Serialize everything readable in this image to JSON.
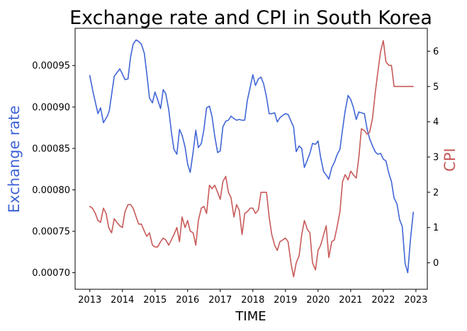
{
  "chart_data": {
    "type": "line",
    "title": "Exchange rate and CPI in South Korea",
    "xlabel": "TIME",
    "xticks": [
      "2013",
      "2014",
      "2015",
      "2016",
      "2017",
      "2018",
      "2019",
      "2020",
      "2021",
      "2022",
      "2023"
    ],
    "xlim": [
      2012.55,
      2023.35
    ],
    "left_axis": {
      "label": "Exchange rate",
      "color": "#4166d6",
      "ylim": [
        0.00068,
        0.000995
      ],
      "ticks": [
        "0.00070",
        "0.00075",
        "0.00080",
        "0.00085",
        "0.00090",
        "0.00095"
      ]
    },
    "right_axis": {
      "label": "CPI",
      "color": "#c85a5a",
      "ylim": [
        -0.75,
        6.65
      ],
      "ticks": [
        "0",
        "1",
        "2",
        "3",
        "4",
        "5",
        "6"
      ]
    },
    "series": [
      {
        "axis": "left",
        "color": "#4166d6",
        "x": [
          2013.0,
          2013.1,
          2013.25,
          2013.33,
          2013.42,
          2013.55,
          2013.6,
          2013.75,
          2013.92,
          2014.0,
          2014.08,
          2014.17,
          2014.25,
          2014.33,
          2014.42,
          2014.5,
          2014.58,
          2014.67,
          2014.75,
          2014.83,
          2014.92,
          2015.0,
          2015.08,
          2015.17,
          2015.25,
          2015.33,
          2015.42,
          2015.5,
          2015.58,
          2015.67,
          2015.75,
          2015.83,
          2015.92,
          2016.0,
          2016.08,
          2016.17,
          2016.25,
          2016.33,
          2016.42,
          2016.5,
          2016.58,
          2016.67,
          2016.75,
          2016.83,
          2016.92,
          2017.0,
          2017.08,
          2017.17,
          2017.25,
          2017.33,
          2017.42,
          2017.5,
          2017.58,
          2017.67,
          2017.75,
          2017.83,
          2017.92,
          2018.0,
          2018.08,
          2018.17,
          2018.25,
          2018.33,
          2018.42,
          2018.5,
          2018.58,
          2018.67,
          2018.75,
          2018.83,
          2018.92,
          2019.0,
          2019.08,
          2019.17,
          2019.25,
          2019.33,
          2019.42,
          2019.5,
          2019.58,
          2019.67,
          2019.75,
          2019.83,
          2019.92,
          2020.0,
          2020.08,
          2020.17,
          2020.25,
          2020.33,
          2020.42,
          2020.5,
          2020.58,
          2020.67,
          2020.75,
          2020.83,
          2020.92,
          2021.0,
          2021.08,
          2021.17,
          2021.25,
          2021.33,
          2021.42,
          2021.5,
          2021.58,
          2021.67,
          2021.75,
          2021.83,
          2021.92,
          2022.0,
          2022.08,
          2022.17,
          2022.25,
          2022.33,
          2022.42,
          2022.5,
          2022.58,
          2022.67,
          2022.75,
          2022.83,
          2022.92
        ],
        "values": [
          0.000938,
          0.000918,
          0.000892,
          0.000899,
          0.000881,
          0.00089,
          0.000896,
          0.000937,
          0.000946,
          0.00094,
          0.000933,
          0.000934,
          0.00096,
          0.000976,
          0.000981,
          0.000979,
          0.000976,
          0.000965,
          0.00094,
          0.000911,
          0.000905,
          0.000918,
          0.000909,
          0.000898,
          0.000921,
          0.000916,
          0.000897,
          0.00087,
          0.000849,
          0.000843,
          0.000873,
          0.000866,
          0.000852,
          0.000831,
          0.000821,
          0.000846,
          0.000872,
          0.000851,
          0.000856,
          0.000873,
          0.000899,
          0.000901,
          0.000888,
          0.000865,
          0.000845,
          0.000847,
          0.000876,
          0.000883,
          0.000884,
          0.000889,
          0.000886,
          0.000884,
          0.000885,
          0.000884,
          0.000884,
          0.000908,
          0.000924,
          0.000939,
          0.000926,
          0.000934,
          0.000936,
          0.000928,
          0.000912,
          0.000892,
          0.000892,
          0.000893,
          0.000882,
          0.000887,
          0.00089,
          0.000892,
          0.000891,
          0.000883,
          0.000876,
          0.000846,
          0.000853,
          0.00085,
          0.000827,
          0.000836,
          0.000844,
          0.000856,
          0.000855,
          0.000859,
          0.000839,
          0.000822,
          0.000818,
          0.000813,
          0.000827,
          0.000833,
          0.000842,
          0.000849,
          0.000873,
          0.000895,
          0.000914,
          0.000909,
          0.0009,
          0.000885,
          0.000894,
          0.000893,
          0.000892,
          0.000874,
          0.000862,
          0.000853,
          0.000846,
          0.000843,
          0.000844,
          0.000837,
          0.000835,
          0.00082,
          0.00081,
          0.00079,
          0.000783,
          0.000764,
          0.000756,
          0.000711,
          0.0007,
          0.000739,
          0.000773
        ]
      },
      {
        "axis": "right",
        "color": "#c85a5a",
        "x": [
          2013.0,
          2013.08,
          2013.17,
          2013.25,
          2013.33,
          2013.42,
          2013.5,
          2013.58,
          2013.67,
          2013.75,
          2013.83,
          2013.92,
          2014.0,
          2014.08,
          2014.17,
          2014.25,
          2014.33,
          2014.42,
          2014.5,
          2014.58,
          2014.67,
          2014.75,
          2014.83,
          2014.92,
          2015.0,
          2015.08,
          2015.17,
          2015.25,
          2015.33,
          2015.42,
          2015.5,
          2015.58,
          2015.67,
          2015.75,
          2015.83,
          2015.92,
          2016.0,
          2016.08,
          2016.17,
          2016.25,
          2016.33,
          2016.42,
          2016.5,
          2016.58,
          2016.67,
          2016.75,
          2016.83,
          2016.92,
          2017.0,
          2017.08,
          2017.17,
          2017.25,
          2017.33,
          2017.42,
          2017.5,
          2017.58,
          2017.67,
          2017.75,
          2017.83,
          2017.92,
          2018.0,
          2018.08,
          2018.17,
          2018.25,
          2018.33,
          2018.42,
          2018.5,
          2018.58,
          2018.67,
          2018.75,
          2018.83,
          2018.92,
          2019.0,
          2019.08,
          2019.17,
          2019.25,
          2019.33,
          2019.42,
          2019.5,
          2019.58,
          2019.67,
          2019.75,
          2019.83,
          2019.92,
          2020.0,
          2020.08,
          2020.17,
          2020.25,
          2020.33,
          2020.42,
          2020.5,
          2020.58,
          2020.67,
          2020.75,
          2020.83,
          2020.92,
          2021.0,
          2021.08,
          2021.17,
          2021.25,
          2021.33,
          2021.42,
          2021.5,
          2021.58,
          2021.67,
          2021.75,
          2021.83,
          2021.92,
          2022.0,
          2022.08,
          2022.17,
          2022.25,
          2022.33,
          2022.42,
          2022.5,
          2022.58,
          2022.67,
          2022.75,
          2022.83,
          2022.92
        ],
        "values": [
          1.6,
          1.55,
          1.4,
          1.2,
          1.15,
          1.55,
          1.4,
          1.0,
          0.85,
          1.25,
          1.15,
          1.05,
          1.0,
          1.45,
          1.65,
          1.65,
          1.55,
          1.3,
          1.1,
          1.1,
          0.9,
          0.75,
          0.85,
          0.5,
          0.45,
          0.45,
          0.6,
          0.7,
          0.65,
          0.5,
          0.65,
          0.8,
          1.0,
          0.6,
          1.3,
          1.0,
          1.2,
          0.9,
          0.85,
          0.5,
          1.2,
          1.55,
          1.6,
          1.4,
          2.2,
          2.1,
          2.2,
          2.0,
          1.8,
          2.3,
          2.45,
          2.0,
          1.85,
          1.3,
          1.65,
          1.5,
          0.8,
          1.4,
          1.45,
          1.55,
          1.55,
          1.4,
          1.5,
          2.0,
          2.0,
          2.0,
          1.3,
          0.8,
          0.5,
          0.35,
          0.6,
          0.65,
          0.7,
          0.6,
          0.0,
          -0.4,
          0.0,
          0.2,
          0.8,
          1.2,
          0.95,
          0.85,
          0.0,
          -0.2,
          0.35,
          0.5,
          0.8,
          1.05,
          0.15,
          0.6,
          0.65,
          1.0,
          1.45,
          2.3,
          2.5,
          2.35,
          2.6,
          2.5,
          2.4,
          3.0,
          3.8,
          3.75,
          3.65,
          3.7,
          4.1,
          4.8,
          5.4,
          6.0,
          6.3,
          5.7,
          5.6,
          5.6,
          5.0,
          5.0,
          5.0,
          5.0,
          5.0,
          5.0,
          5.0,
          5.0
        ]
      }
    ]
  }
}
